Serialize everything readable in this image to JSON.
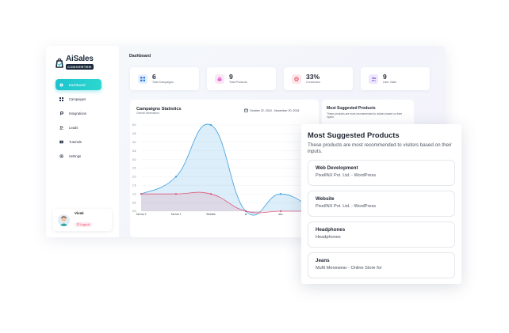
{
  "brand": {
    "name": "AiSales",
    "sub": "CONVERTER"
  },
  "nav": [
    {
      "label": "Dashboard",
      "icon": "dashboard-icon",
      "active": true
    },
    {
      "label": "Campaigns",
      "icon": "grid-icon"
    },
    {
      "label": "Integrations",
      "icon": "link-icon"
    },
    {
      "label": "Leads",
      "icon": "users-icon"
    },
    {
      "label": "Tutorials",
      "icon": "video-icon"
    },
    {
      "label": "Settings",
      "icon": "gear-icon"
    }
  ],
  "user": {
    "name": "Vivek",
    "logout_label": "Logout"
  },
  "page_title": "Dashboard",
  "stats": [
    {
      "value": "6",
      "label": "Total Campaigns",
      "icon": "grid-icon",
      "color": "#2f7de1",
      "bg": "#e5efff"
    },
    {
      "value": "9",
      "label": "Total Products",
      "icon": "box-icon",
      "color": "#d957c2",
      "bg": "#fbe6f6"
    },
    {
      "value": "33%",
      "label": "Conversion",
      "icon": "target-icon",
      "color": "#e64d62",
      "bg": "#fde6ea"
    },
    {
      "value": "9",
      "label": "User Visits",
      "icon": "users-icon",
      "color": "#8a5ce6",
      "bg": "#efe8fd"
    }
  ],
  "chart_card": {
    "title": "Campaigns Statistics",
    "subtitle": "Overall Information",
    "date_range": "October 22, 2024 - November 20, 2024"
  },
  "chart_data": {
    "type": "area",
    "categories": [
      "Sal bar 2",
      "Sal bar 1",
      "Website",
      "al",
      "abc",
      ""
    ],
    "ylim": [
      0,
      5
    ],
    "yticks": [
      "0.0",
      "0.5",
      "1.0",
      "1.5",
      "2.0",
      "2.5",
      "3.0",
      "3.5",
      "4.0",
      "4.5",
      "5.0"
    ],
    "series": [
      {
        "values": [
          1,
          2,
          5,
          0,
          1,
          0
        ],
        "color": "#3d9ee0"
      },
      {
        "values": [
          1,
          1,
          1,
          0,
          0,
          0
        ],
        "color": "#e0577a"
      }
    ]
  },
  "side_card": {
    "title": "Most Suggested Products",
    "desc": "These products are most recommended to visitors based on their inputs."
  },
  "popup": {
    "title": "Most Suggested Products",
    "desc": "These products are most recommended to visitors based on their inputs.",
    "products": [
      {
        "name": "Web Development",
        "desc": "PixelINX Pvt. Ltd. - WordPress"
      },
      {
        "name": "Website",
        "desc": "PixelINX Pvt. Ltd. - WordPress"
      },
      {
        "name": "Headphones",
        "desc": "Headphones"
      },
      {
        "name": "Jeans",
        "desc": "Mufti Menswear - Online Store for"
      }
    ]
  }
}
